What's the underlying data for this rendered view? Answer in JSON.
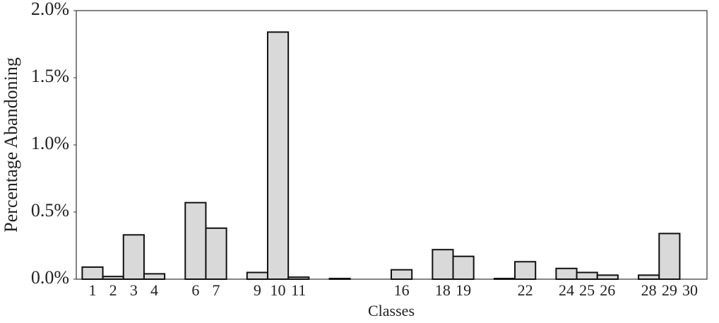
{
  "chart_data": {
    "type": "bar",
    "xlabel": "Classes",
    "ylabel": "Percentage Abandoning",
    "categories": [
      "1",
      "2",
      "3",
      "4",
      null,
      "6",
      "7",
      null,
      "9",
      "10",
      "11",
      null,
      null,
      null,
      null,
      "16",
      null,
      "18",
      "19",
      null,
      null,
      "22",
      null,
      "24",
      "25",
      "26",
      null,
      "28",
      "29",
      "30"
    ],
    "values": [
      0.09,
      0.02,
      0.33,
      0.04,
      0,
      0.57,
      0.38,
      0,
      0.05,
      1.84,
      0.015,
      0,
      0.005,
      0,
      0,
      0.07,
      0,
      0.22,
      0.17,
      0,
      0.005,
      0.13,
      0,
      0.08,
      0.05,
      0.03,
      0,
      0.03,
      0.34,
      0
    ],
    "color": "#d9d9d9",
    "ylim": [
      0,
      2
    ],
    "yticks": [
      {
        "value": 0,
        "label": "0.0%"
      },
      {
        "value": 0.5,
        "label": "0.5%"
      },
      {
        "value": 1,
        "label": "1.0%"
      },
      {
        "value": 1.5,
        "label": "1.5%"
      },
      {
        "value": 2,
        "label": "2.0%"
      }
    ]
  }
}
